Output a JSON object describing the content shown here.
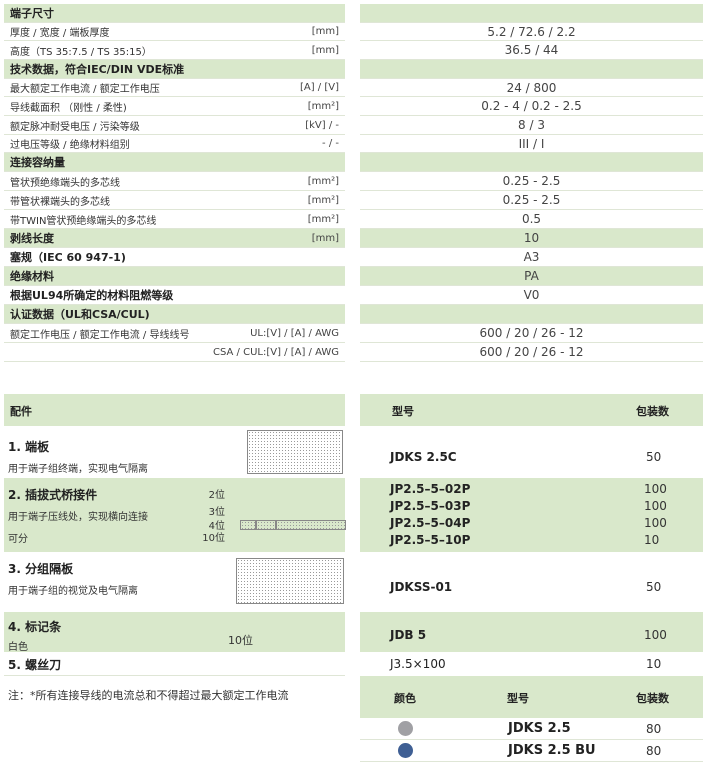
{
  "specs": [
    {
      "label": "端子尺寸",
      "unit": "",
      "value": "",
      "header": true
    },
    {
      "label": "厚度 / 宽度 / 端板厚度",
      "unit": "[mm]",
      "value": "5.2 / 72.6 / 2.2"
    },
    {
      "label": "高度（TS 35:7.5 / TS 35:15）",
      "unit": "[mm]",
      "value": "36.5 / 44"
    },
    {
      "label": "技术数据，符合IEC/DIN VDE标准",
      "unit": "",
      "value": "",
      "header": true
    },
    {
      "label": "最大额定工作电流 / 额定工作电压",
      "unit": "[A] / [V]",
      "value": "24 / 800"
    },
    {
      "label": "导线截面积 （刚性 / 柔性)",
      "unit": "[mm²]",
      "value": "0.2 - 4 / 0.2 - 2.5"
    },
    {
      "label": "额定脉冲耐受电压 / 污染等级",
      "unit": "[kV] / -",
      "value": "8 / 3"
    },
    {
      "label": "过电压等级 / 绝缘材料组别",
      "unit": "- / -",
      "value": "III / I"
    },
    {
      "label": "连接容纳量",
      "unit": "",
      "value": "",
      "header": true
    },
    {
      "label": "管状预绝缘端头的多芯线",
      "unit": "[mm²]",
      "value": "0.25 - 2.5"
    },
    {
      "label": "带管状裸端头的多芯线",
      "unit": "[mm²]",
      "value": "0.25 - 2.5"
    },
    {
      "label": "带TWIN管状预绝缘端头的多芯线",
      "unit": "[mm²]",
      "value": "0.5"
    },
    {
      "label": "剥线长度",
      "unit": "[mm]",
      "value": "10",
      "header": true
    },
    {
      "label": "塞规（IEC 60 947-1)",
      "unit": "",
      "value": "A3",
      "bold": true
    },
    {
      "label": "绝缘材料",
      "unit": "",
      "value": "PA",
      "header": true
    },
    {
      "label": "根据UL94所确定的材料阻燃等级",
      "unit": "",
      "value": "V0",
      "bold": true
    },
    {
      "label": "认证数据（UL和CSA/CUL)",
      "unit": "",
      "value": "",
      "header": true
    },
    {
      "label": "额定工作电压 / 额定工作电流 / 导线线号",
      "unit": "UL:[V] / [A] / AWG",
      "value": "600 / 20 / 26 - 12"
    },
    {
      "label": "",
      "unit": "CSA / CUL:[V] / [A] / AWG",
      "value": "600 / 20 / 26 - 12"
    }
  ],
  "acc": {
    "header": "配件",
    "model_h": "型号",
    "pack_h": "包装数",
    "i1": {
      "title": "1. 端板",
      "desc": "用于端子组终端，实现电气隔离",
      "model": "JDKS 2.5C",
      "pack": "50"
    },
    "i2": {
      "title": "2. 插拔式桥接件",
      "desc": "用于端子压线处，实现横向连接",
      "desc2": "可分",
      "pos": [
        "2位",
        "3位",
        "4位",
        "10位"
      ],
      "models": [
        "JP2.5–5–02P",
        "JP2.5–5–03P",
        "JP2.5–5–04P",
        "JP2.5–5–10P"
      ],
      "packs": [
        "100",
        "100",
        "100",
        "10"
      ]
    },
    "i3": {
      "title": "3. 分组隔板",
      "desc": "用于端子组的视觉及电气隔离",
      "model": "JDKSS-01",
      "pack": "50"
    },
    "i4": {
      "title": "4. 标记条",
      "desc": "白色",
      "pos": "10位",
      "model": "JDB 5",
      "pack": "100"
    },
    "i5": {
      "title": "5. 螺丝刀",
      "model": "J3.5×100",
      "pack": "10"
    },
    "note": "注：*所有连接导线的电流总和不得超过最大额定工作电流"
  },
  "colors": {
    "color_h": "颜色",
    "model_h": "型号",
    "pack_h": "包装数",
    "rows": [
      {
        "color": "#a0a0a4",
        "model": "JDKS 2.5",
        "pack": "80"
      },
      {
        "color": "#3f5f94",
        "model": "JDKS 2.5 BU",
        "pack": "80"
      }
    ]
  }
}
